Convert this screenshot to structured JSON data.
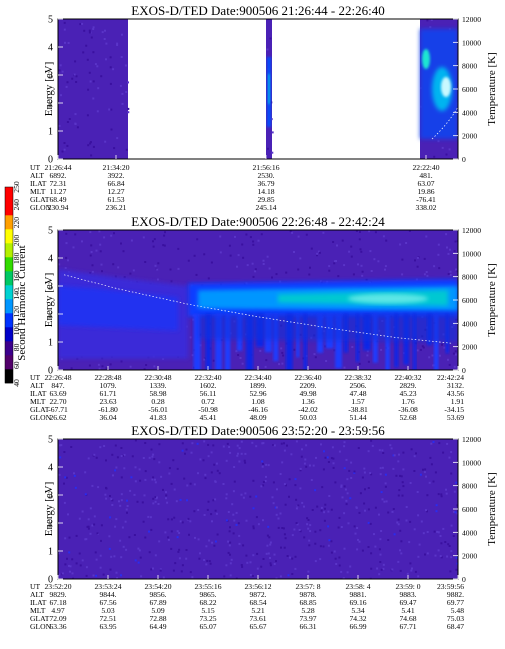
{
  "colorbar": {
    "label": "Second Harmonic Current",
    "ticks": [
      "40",
      "60",
      "80",
      "100",
      "120",
      "140",
      "160",
      "180",
      "200",
      "220",
      "240",
      "250"
    ],
    "colors": [
      "#000000",
      "#52006b",
      "#3c008c",
      "#0000c8",
      "#0032ff",
      "#0096ff",
      "#00d2d2",
      "#00c864",
      "#32dc00",
      "#b4f000",
      "#ffff00",
      "#ffa000",
      "#ff0000",
      "#ff0000"
    ]
  },
  "chart_data": [
    {
      "type": "heatmap",
      "title": "EXOS-D/TED   Date:900506  21:26:44 - 22:26:40",
      "ylabel": "Energy [eV]",
      "y2label": "Temperature [K]",
      "ylim": [
        0,
        5
      ],
      "y2lim": [
        0,
        12000
      ],
      "yticks": [
        "0",
        "1",
        "2",
        "3",
        "4",
        "5"
      ],
      "y2ticks": [
        "0",
        "2000",
        "4000",
        "6000",
        "8000",
        "10000",
        "12000"
      ],
      "data_segments": [
        [
          0.0,
          0.175
        ],
        [
          0.52,
          0.535
        ],
        [
          0.905,
          1.0
        ]
      ],
      "times": [
        {
          "pos": 0.0,
          "label": "21:26:44"
        },
        {
          "pos": 0.145,
          "label": "21:34:20"
        },
        {
          "pos": 0.52,
          "label": "21:56:16"
        },
        {
          "pos": 0.92,
          "label": "22:22:40"
        }
      ],
      "rows": [
        {
          "name": "UT",
          "values": [
            "21:26:44",
            "21:34:20",
            "21:56:16",
            "22:22:40"
          ]
        },
        {
          "name": "ALT",
          "values": [
            "6892.",
            "3922.",
            "2530.",
            "481."
          ]
        },
        {
          "name": "ILAT",
          "values": [
            "72.31",
            "66.84",
            "36.79",
            "63.07"
          ]
        },
        {
          "name": "MLT",
          "values": [
            "11.27",
            "12.27",
            "14.18",
            "19.86"
          ]
        },
        {
          "name": "GLAT",
          "values": [
            "68.49",
            "61.53",
            "29.85",
            "-76.41"
          ]
        },
        {
          "name": "GLON",
          "values": [
            "230.94",
            "236.21",
            "245.14",
            "338.02"
          ]
        }
      ]
    },
    {
      "type": "heatmap",
      "title": "EXOS-D/TED   Date:900506  22:26:48 - 22:42:24",
      "ylabel": "Energy [eV]",
      "y2label": "Temperature [K]",
      "ylim": [
        0,
        5
      ],
      "y2lim": [
        0,
        12000
      ],
      "yticks": [
        "0",
        "1",
        "2",
        "3",
        "4",
        "5"
      ],
      "y2ticks": [
        "0",
        "2000",
        "4000",
        "6000",
        "8000",
        "10000",
        "12000"
      ],
      "times": [
        {
          "pos": 0.0,
          "label": "22:26:48"
        },
        {
          "pos": 0.125,
          "label": "22:28:48"
        },
        {
          "pos": 0.25,
          "label": "22:30:48"
        },
        {
          "pos": 0.375,
          "label": "22:32:40"
        },
        {
          "pos": 0.5,
          "label": "22:34:40"
        },
        {
          "pos": 0.625,
          "label": "22:36:40"
        },
        {
          "pos": 0.75,
          "label": "22:38:32"
        },
        {
          "pos": 0.875,
          "label": "22:40:32"
        },
        {
          "pos": 1.0,
          "label": "22:42:24"
        }
      ],
      "rows": [
        {
          "name": "UT",
          "values": [
            "22:26:48",
            "22:28:48",
            "22:30:48",
            "22:32:40",
            "22:34:40",
            "22:36:40",
            "22:38:32",
            "22:40:32",
            "22:42:24"
          ]
        },
        {
          "name": "ALT",
          "values": [
            "847.",
            "1079.",
            "1339.",
            "1602.",
            "1899.",
            "2209.",
            "2506.",
            "2829.",
            "3132."
          ]
        },
        {
          "name": "ILAT",
          "values": [
            "63.69",
            "61.71",
            "58.98",
            "56.11",
            "52.96",
            "49.98",
            "47.48",
            "45.23",
            "43.56"
          ]
        },
        {
          "name": "MLT",
          "values": [
            "22.70",
            "23.63",
            "0.28",
            "0.72",
            "1.08",
            "1.36",
            "1.57",
            "1.76",
            "1.91"
          ]
        },
        {
          "name": "GLAT",
          "values": [
            "-67.71",
            "-61.80",
            "-56.01",
            "-50.98",
            "-46.16",
            "-42.02",
            "-38.81",
            "-36.08",
            "-34.15"
          ]
        },
        {
          "name": "GLON",
          "values": [
            "26.62",
            "36.04",
            "41.83",
            "45.41",
            "48.09",
            "50.03",
            "51.44",
            "52.68",
            "53.69"
          ]
        }
      ]
    },
    {
      "type": "heatmap",
      "title": "EXOS-D/TED   Date:900506  23:52:20 - 23:59:56",
      "ylabel": "Energy [eV]",
      "y2label": "Temperature [K]",
      "ylim": [
        0,
        5
      ],
      "y2lim": [
        0,
        12000
      ],
      "yticks": [
        "0",
        "1",
        "2",
        "3",
        "4",
        "5"
      ],
      "y2ticks": [
        "0",
        "2000",
        "4000",
        "6000",
        "8000",
        "10000",
        "12000"
      ],
      "times": [
        {
          "pos": 0.0,
          "label": "23:52:20"
        },
        {
          "pos": 0.125,
          "label": "23:53:24"
        },
        {
          "pos": 0.25,
          "label": "23:54:20"
        },
        {
          "pos": 0.375,
          "label": "23:55:16"
        },
        {
          "pos": 0.5,
          "label": "23:56:12"
        },
        {
          "pos": 0.625,
          "label": "23:57: 8"
        },
        {
          "pos": 0.75,
          "label": "23:58: 4"
        },
        {
          "pos": 0.875,
          "label": "23:59: 0"
        },
        {
          "pos": 1.0,
          "label": "23:59:56"
        }
      ],
      "rows": [
        {
          "name": "UT",
          "values": [
            "23:52:20",
            "23:53:24",
            "23:54:20",
            "23:55:16",
            "23:56:12",
            "23:57: 8",
            "23:58: 4",
            "23:59: 0",
            "23:59:56"
          ]
        },
        {
          "name": "ALT",
          "values": [
            "9829.",
            "9844.",
            "9856.",
            "9865.",
            "9872.",
            "9878.",
            "9881.",
            "9883.",
            "9882."
          ]
        },
        {
          "name": "ILAT",
          "values": [
            "67.18",
            "67.56",
            "67.89",
            "68.22",
            "68.54",
            "68.85",
            "69.16",
            "69.47",
            "69.77"
          ]
        },
        {
          "name": "MLT",
          "values": [
            "4.97",
            "5.03",
            "5.09",
            "5.15",
            "5.21",
            "5.28",
            "5.34",
            "5.41",
            "5.48"
          ]
        },
        {
          "name": "GLAT",
          "values": [
            "72.09",
            "72.51",
            "72.88",
            "73.25",
            "73.61",
            "73.97",
            "74.32",
            "74.68",
            "75.03"
          ]
        },
        {
          "name": "GLON",
          "values": [
            "63.36",
            "63.95",
            "64.49",
            "65.07",
            "65.67",
            "66.31",
            "66.99",
            "67.71",
            "68.47"
          ]
        }
      ]
    }
  ]
}
